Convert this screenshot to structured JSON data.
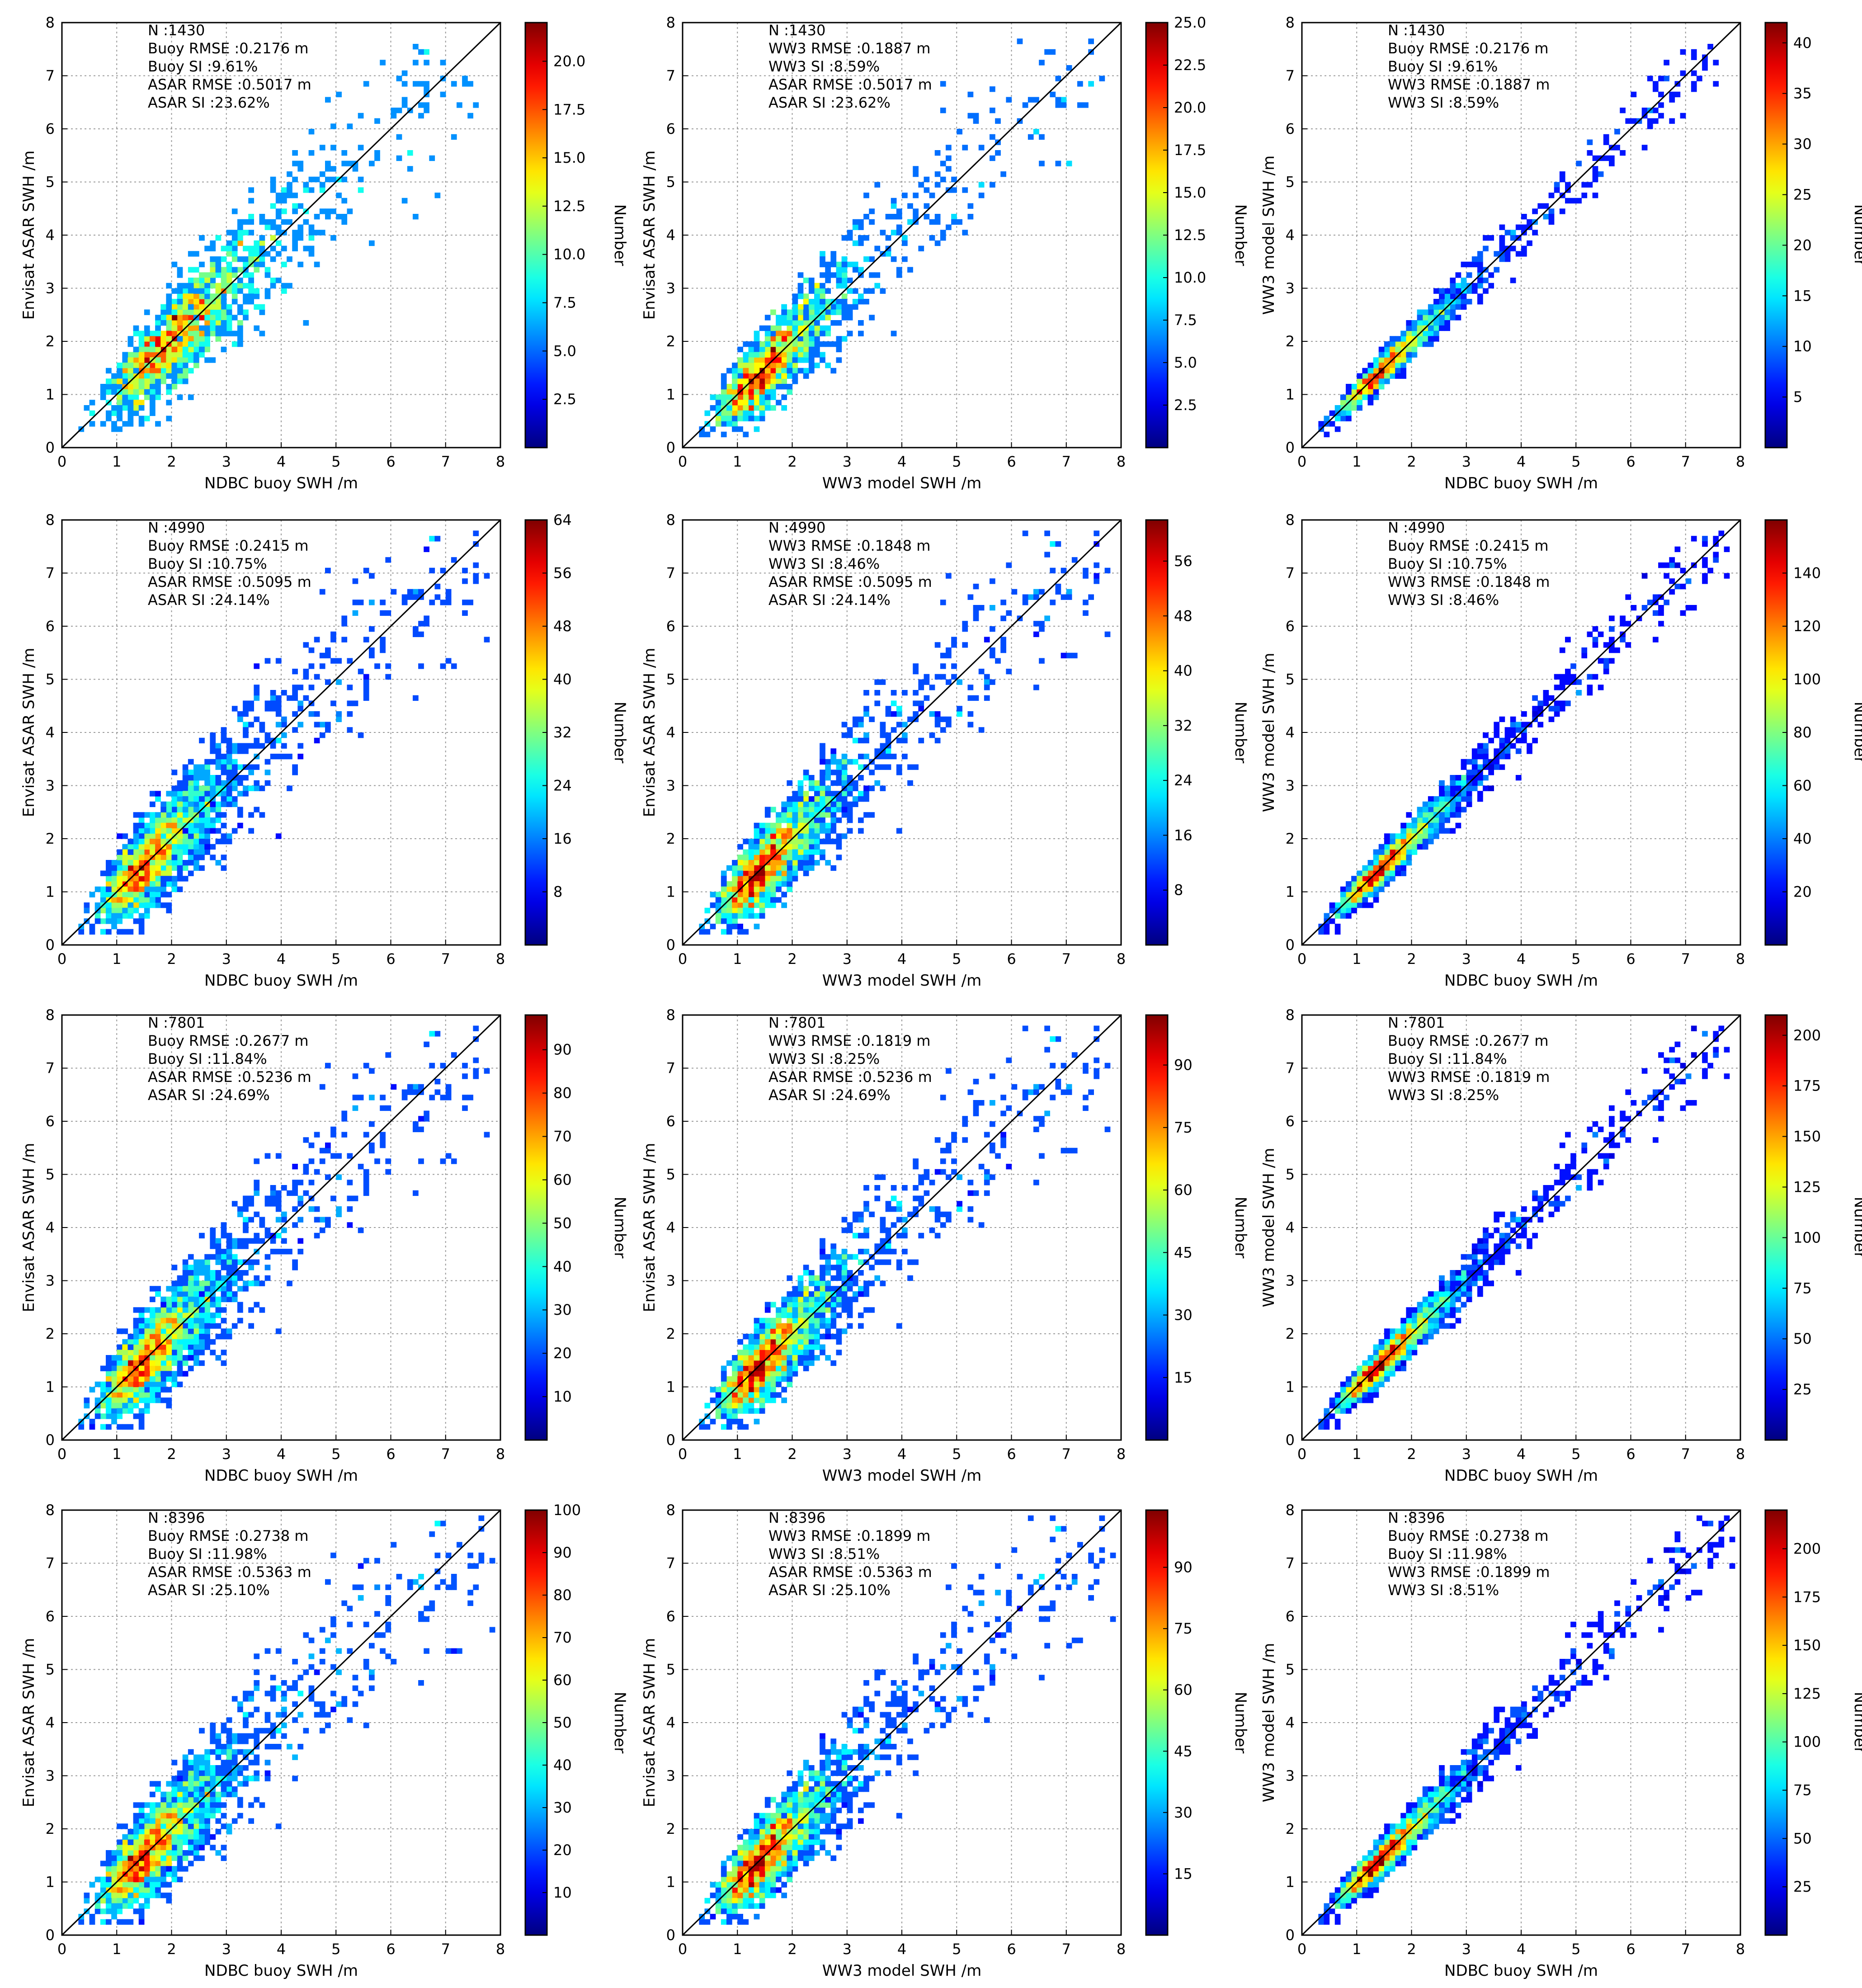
{
  "figure": {
    "rows": 4,
    "cols": 3
  },
  "common": {
    "xlabel_buoy": "NDBC buoy SWH /m",
    "xlabel_ww3": "WW3 model SWH /m",
    "ylabel_asar": "Envisat ASAR SWH /m",
    "ylabel_ww3": "WW3 model SWH /m",
    "colorbar_label": "Number"
  },
  "chart_data": [
    {
      "type": "heatmap",
      "row": 0,
      "col": 0,
      "xlabel": "NDBC buoy SWH /m",
      "ylabel": "Envisat ASAR SWH /m",
      "xlim": [
        0,
        8
      ],
      "ylim": [
        0,
        8
      ],
      "grid": true,
      "annotation": [
        "N :1430",
        "Buoy RMSE :0.2176 m",
        "Buoy SI :9.61%",
        "ASAR RMSE :0.5017 m",
        "ASAR SI :23.62%"
      ],
      "colorbar": {
        "label": "Number",
        "max": 22,
        "ticks": [
          "2.5",
          "5.0",
          "7.5",
          "10.0",
          "12.5",
          "15.0",
          "17.5",
          "20.0"
        ]
      },
      "peak": {
        "x": 2.2,
        "y": 2.3
      },
      "spread": 0.55,
      "bias": 0.0,
      "count": 1430,
      "maxSwh": 7.6
    },
    {
      "type": "heatmap",
      "row": 0,
      "col": 1,
      "xlabel": "WW3 model SWH /m",
      "ylabel": "Envisat ASAR SWH /m",
      "xlim": [
        0,
        8
      ],
      "ylim": [
        0,
        8
      ],
      "grid": true,
      "annotation": [
        "N :1430",
        "WW3 RMSE :0.1887 m",
        "WW3 SI :8.59%",
        "ASAR RMSE :0.5017 m",
        "ASAR SI :23.62%"
      ],
      "colorbar": {
        "label": "Number",
        "max": 25,
        "ticks": [
          "2.5",
          "5.0",
          "7.5",
          "10.0",
          "12.5",
          "15.0",
          "17.5",
          "20.0",
          "22.5",
          "25.0"
        ]
      },
      "peak": {
        "x": 1.6,
        "y": 1.6
      },
      "spread": 0.55,
      "bias": 0.0,
      "count": 1430,
      "maxSwh": 7.7
    },
    {
      "type": "heatmap",
      "row": 0,
      "col": 2,
      "xlabel": "NDBC buoy SWH /m",
      "ylabel": "WW3 model SWH /m",
      "xlim": [
        0,
        8
      ],
      "ylim": [
        0,
        8
      ],
      "grid": true,
      "annotation": [
        "N :1430",
        "Buoy RMSE :0.2176 m",
        "Buoy SI :9.61%",
        "WW3 RMSE :0.1887 m",
        "WW3 SI :8.59%"
      ],
      "colorbar": {
        "label": "Number",
        "max": 42,
        "ticks": [
          "5",
          "10",
          "15",
          "20",
          "25",
          "30",
          "35",
          "40"
        ]
      },
      "peak": {
        "x": 1.6,
        "y": 1.6
      },
      "spread": 0.22,
      "bias": 0.0,
      "count": 1430,
      "maxSwh": 7.6
    },
    {
      "type": "heatmap",
      "row": 1,
      "col": 0,
      "xlabel": "NDBC buoy SWH /m",
      "ylabel": "Envisat ASAR SWH /m",
      "xlim": [
        0,
        8
      ],
      "ylim": [
        0,
        8
      ],
      "grid": true,
      "annotation": [
        "N :4990",
        "Buoy RMSE :0.2415 m",
        "Buoy SI :10.75%",
        "ASAR RMSE :0.5095 m",
        "ASAR SI :24.14%"
      ],
      "colorbar": {
        "label": "Number",
        "max": 64,
        "ticks": [
          "8",
          "16",
          "24",
          "32",
          "40",
          "48",
          "56",
          "64"
        ]
      },
      "peak": {
        "x": 1.7,
        "y": 1.8
      },
      "spread": 0.6,
      "bias": 0.0,
      "count": 4990,
      "maxSwh": 7.8
    },
    {
      "type": "heatmap",
      "row": 1,
      "col": 1,
      "xlabel": "WW3 model SWH /m",
      "ylabel": "Envisat ASAR SWH /m",
      "xlim": [
        0,
        8
      ],
      "ylim": [
        0,
        8
      ],
      "grid": true,
      "annotation": [
        "N :4990",
        "WW3 RMSE :0.1848 m",
        "WW3 SI :8.46%",
        "ASAR RMSE :0.5095 m",
        "ASAR SI :24.14%"
      ],
      "colorbar": {
        "label": "Number",
        "max": 62,
        "ticks": [
          "8",
          "16",
          "24",
          "32",
          "40",
          "48",
          "56"
        ]
      },
      "peak": {
        "x": 1.6,
        "y": 1.6
      },
      "spread": 0.55,
      "bias": 0.0,
      "count": 4990,
      "maxSwh": 7.8
    },
    {
      "type": "heatmap",
      "row": 1,
      "col": 2,
      "xlabel": "NDBC buoy SWH /m",
      "ylabel": "WW3 model SWH /m",
      "xlim": [
        0,
        8
      ],
      "ylim": [
        0,
        8
      ],
      "grid": true,
      "annotation": [
        "N :4990",
        "Buoy RMSE :0.2415 m",
        "Buoy SI :10.75%",
        "WW3 RMSE :0.1848 m",
        "WW3 SI :8.46%"
      ],
      "colorbar": {
        "label": "Number",
        "max": 160,
        "ticks": [
          "20",
          "40",
          "60",
          "80",
          "100",
          "120",
          "140"
        ]
      },
      "peak": {
        "x": 1.6,
        "y": 1.6
      },
      "spread": 0.24,
      "bias": 0.0,
      "count": 4990,
      "maxSwh": 7.8
    },
    {
      "type": "heatmap",
      "row": 2,
      "col": 0,
      "xlabel": "NDBC buoy SWH /m",
      "ylabel": "Envisat ASAR SWH /m",
      "xlim": [
        0,
        8
      ],
      "ylim": [
        0,
        8
      ],
      "grid": true,
      "annotation": [
        "N :7801",
        "Buoy RMSE :0.2677 m",
        "Buoy SI :11.84%",
        "ASAR RMSE :0.5236 m",
        "ASAR SI :24.69%"
      ],
      "colorbar": {
        "label": "Number",
        "max": 98,
        "ticks": [
          "10",
          "20",
          "30",
          "40",
          "50",
          "60",
          "70",
          "80",
          "90"
        ]
      },
      "peak": {
        "x": 1.7,
        "y": 1.8
      },
      "spread": 0.6,
      "bias": 0.0,
      "count": 7801,
      "maxSwh": 7.8
    },
    {
      "type": "heatmap",
      "row": 2,
      "col": 1,
      "xlabel": "WW3 model SWH /m",
      "ylabel": "Envisat ASAR SWH /m",
      "xlim": [
        0,
        8
      ],
      "ylim": [
        0,
        8
      ],
      "grid": true,
      "annotation": [
        "N :7801",
        "WW3 RMSE :0.1819 m",
        "WW3 SI :8.25%",
        "ASAR RMSE :0.5236 m",
        "ASAR SI :24.69%"
      ],
      "colorbar": {
        "label": "Number",
        "max": 102,
        "ticks": [
          "15",
          "30",
          "45",
          "60",
          "75",
          "90"
        ]
      },
      "peak": {
        "x": 1.6,
        "y": 1.6
      },
      "spread": 0.55,
      "bias": 0.0,
      "count": 7801,
      "maxSwh": 7.8
    },
    {
      "type": "heatmap",
      "row": 2,
      "col": 2,
      "xlabel": "NDBC buoy SWH /m",
      "ylabel": "WW3 model SWH /m",
      "xlim": [
        0,
        8
      ],
      "ylim": [
        0,
        8
      ],
      "grid": true,
      "annotation": [
        "N :7801",
        "Buoy RMSE :0.2677 m",
        "Buoy SI :11.84%",
        "WW3 RMSE :0.1819 m",
        "WW3 SI :8.25%"
      ],
      "colorbar": {
        "label": "Number",
        "max": 210,
        "ticks": [
          "25",
          "50",
          "75",
          "100",
          "125",
          "150",
          "175",
          "200"
        ]
      },
      "peak": {
        "x": 1.6,
        "y": 1.6
      },
      "spread": 0.25,
      "bias": 0.0,
      "count": 7801,
      "maxSwh": 7.8
    },
    {
      "type": "heatmap",
      "row": 3,
      "col": 0,
      "xlabel": "NDBC buoy SWH /m",
      "ylabel": "Envisat ASAR SWH /m",
      "xlim": [
        0,
        8
      ],
      "ylim": [
        0,
        8
      ],
      "grid": true,
      "annotation": [
        "N :8396",
        "Buoy RMSE :0.2738 m",
        "Buoy SI :11.98%",
        "ASAR RMSE :0.5363 m",
        "ASAR SI :25.10%"
      ],
      "colorbar": {
        "label": "Number",
        "max": 100,
        "ticks": [
          "10",
          "20",
          "30",
          "40",
          "50",
          "60",
          "70",
          "80",
          "90",
          "100"
        ]
      },
      "peak": {
        "x": 1.7,
        "y": 1.8
      },
      "spread": 0.6,
      "bias": 0.0,
      "count": 8396,
      "maxSwh": 7.9
    },
    {
      "type": "heatmap",
      "row": 3,
      "col": 1,
      "xlabel": "WW3 model SWH /m",
      "ylabel": "Envisat ASAR SWH /m",
      "xlim": [
        0,
        8
      ],
      "ylim": [
        0,
        8
      ],
      "grid": true,
      "annotation": [
        "N :8396",
        "WW3 RMSE :0.1899 m",
        "WW3 SI :8.51%",
        "ASAR RMSE :0.5363 m",
        "ASAR SI :25.10%"
      ],
      "colorbar": {
        "label": "Number",
        "max": 104,
        "ticks": [
          "15",
          "30",
          "45",
          "60",
          "75",
          "90"
        ]
      },
      "peak": {
        "x": 1.6,
        "y": 1.6
      },
      "spread": 0.55,
      "bias": 0.0,
      "count": 8396,
      "maxSwh": 7.9
    },
    {
      "type": "heatmap",
      "row": 3,
      "col": 2,
      "xlabel": "NDBC buoy SWH /m",
      "ylabel": "WW3 model SWH /m",
      "xlim": [
        0,
        8
      ],
      "ylim": [
        0,
        8
      ],
      "grid": true,
      "annotation": [
        "N :8396",
        "Buoy RMSE :0.2738 m",
        "Buoy SI :11.98%",
        "WW3 RMSE :0.1899 m",
        "WW3 SI :8.51%"
      ],
      "colorbar": {
        "label": "Number",
        "max": 220,
        "ticks": [
          "25",
          "50",
          "75",
          "100",
          "125",
          "150",
          "175",
          "200"
        ]
      },
      "peak": {
        "x": 1.6,
        "y": 1.6
      },
      "spread": 0.25,
      "bias": 0.0,
      "count": 8396,
      "maxSwh": 7.9
    }
  ],
  "axis_ticks": [
    "0",
    "1",
    "2",
    "3",
    "4",
    "5",
    "6",
    "7",
    "8"
  ],
  "colors": {
    "axis": "#000000",
    "grid": "#9a9a9a",
    "diagonal": "#000000"
  }
}
